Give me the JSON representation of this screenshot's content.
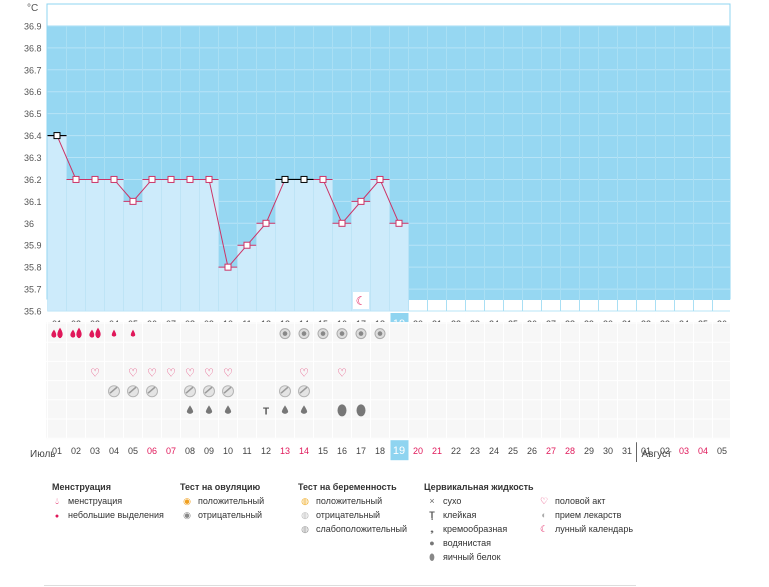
{
  "chart_data": {
    "type": "line",
    "unit_label": "°C",
    "y_ticks": [
      36.9,
      36.8,
      36.7,
      36.6,
      36.5,
      36.4,
      36.3,
      36.2,
      36.1,
      36,
      35.9,
      35.8,
      35.7,
      35.6
    ],
    "ylim": [
      35.6,
      37.0
    ],
    "top_day_labels": [
      "01",
      "02",
      "03",
      "04",
      "05",
      "06",
      "07",
      "08",
      "09",
      "10",
      "11",
      "12",
      "13",
      "14",
      "15",
      "16",
      "17",
      "18",
      "19",
      "20",
      "21",
      "22",
      "23",
      "24",
      "25",
      "26",
      "27",
      "28",
      "29",
      "30",
      "31",
      "32",
      "33",
      "34",
      "35",
      "36"
    ],
    "current_day": "19",
    "series": [
      {
        "values": [
          36.4,
          36.2,
          36.2,
          36.2,
          36.1,
          36.2,
          36.2,
          36.2,
          36.2,
          35.8,
          35.9,
          36.0,
          36.2,
          36.2,
          36.2,
          36.0,
          36.1,
          36.2,
          36.0
        ]
      }
    ],
    "black_markers_days": [
      "01",
      "13",
      "14"
    ],
    "moon_marker_day": "17"
  },
  "rows": {
    "menstruation": {
      "heavy_days": [
        "01",
        "02",
        "03"
      ],
      "light_days": [
        "04",
        "05"
      ]
    },
    "ovulation_test": {
      "negative_days": [
        "13",
        "14",
        "15",
        "16",
        "17",
        "18"
      ]
    },
    "intercourse": {
      "days": [
        "03",
        "05",
        "06",
        "07",
        "08",
        "09",
        "10",
        "14",
        "16"
      ]
    },
    "medication": {
      "days": [
        "04",
        "05",
        "06",
        "08",
        "09",
        "10",
        "13",
        "14"
      ]
    },
    "cervical": [
      {
        "day": "08",
        "kind": "watery"
      },
      {
        "day": "09",
        "kind": "watery"
      },
      {
        "day": "10",
        "kind": "watery"
      },
      {
        "day": "12",
        "kind": "sticky"
      },
      {
        "day": "13",
        "kind": "watery"
      },
      {
        "day": "14",
        "kind": "watery"
      },
      {
        "day": "16",
        "kind": "egg-white"
      },
      {
        "day": "17",
        "kind": "egg-white"
      }
    ]
  },
  "bottom_dates": [
    {
      "d": "01",
      "red": false
    },
    {
      "d": "02",
      "red": false
    },
    {
      "d": "03",
      "red": false
    },
    {
      "d": "04",
      "red": false
    },
    {
      "d": "05",
      "red": false
    },
    {
      "d": "06",
      "red": true
    },
    {
      "d": "07",
      "red": true
    },
    {
      "d": "08",
      "red": false
    },
    {
      "d": "09",
      "red": false
    },
    {
      "d": "10",
      "red": false
    },
    {
      "d": "11",
      "red": false
    },
    {
      "d": "12",
      "red": false
    },
    {
      "d": "13",
      "red": true
    },
    {
      "d": "14",
      "red": true
    },
    {
      "d": "15",
      "red": false
    },
    {
      "d": "16",
      "red": false
    },
    {
      "d": "17",
      "red": false
    },
    {
      "d": "18",
      "red": false
    },
    {
      "d": "19",
      "red": false
    },
    {
      "d": "20",
      "red": true
    },
    {
      "d": "21",
      "red": true
    },
    {
      "d": "22",
      "red": false
    },
    {
      "d": "23",
      "red": false
    },
    {
      "d": "24",
      "red": false
    },
    {
      "d": "25",
      "red": false
    },
    {
      "d": "26",
      "red": false
    },
    {
      "d": "27",
      "red": true
    },
    {
      "d": "28",
      "red": true
    },
    {
      "d": "29",
      "red": false
    },
    {
      "d": "30",
      "red": false
    },
    {
      "d": "31",
      "red": false
    },
    {
      "d": "01",
      "red": false
    },
    {
      "d": "02",
      "red": false
    },
    {
      "d": "03",
      "red": true
    },
    {
      "d": "04",
      "red": true
    },
    {
      "d": "05",
      "red": false
    }
  ],
  "months": {
    "first": "Июль",
    "second": "Август"
  },
  "legend": {
    "menstruation": {
      "title": "Менструация",
      "items": [
        "менструация",
        "небольшие выделения"
      ]
    },
    "ovulation": {
      "title": "Тест на овуляцию",
      "items": [
        "положительный",
        "отрицательный"
      ]
    },
    "pregnancy": {
      "title": "Тест на беременность",
      "items": [
        "положительный",
        "отрицательный",
        "слабоположительный"
      ]
    },
    "cervical": {
      "title": "Цервикальная жидкость",
      "items": [
        "сухо",
        "клейкая",
        "кремообразная",
        "водянистая",
        "яичный белок"
      ]
    },
    "other": {
      "items": [
        "половой акт",
        "прием лекарств",
        "лунный календарь"
      ]
    }
  },
  "colors": {
    "sky": "#96d7f2",
    "column_fill": "#cdebfb",
    "line": "#cc3366",
    "accent_red": "#e0185a",
    "today": "#8fd4f0"
  }
}
